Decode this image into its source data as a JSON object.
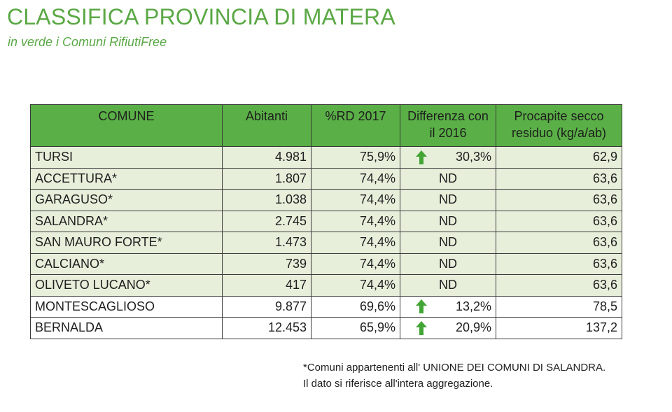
{
  "header": {
    "title": "CLASSIFICA PROVINCIA DI MATERA",
    "subtitle": "in verde i Comuni RifiutiFree"
  },
  "colors": {
    "title_green": "#5aa845",
    "header_green": "#5ab046",
    "rifiutifree_row": "#e7efdb",
    "arrow_green": "#43a535"
  },
  "table": {
    "columns": {
      "comune": "COMUNE",
      "abitanti": "Abitanti",
      "rd": "%RD 2017",
      "diff_line1": "Differenza con",
      "diff_line2": "il 2016",
      "procapite_line1": "Procapite secco",
      "procapite_line2": "residuo (kg/a/ab)"
    },
    "rows": [
      {
        "comune": "TURSI",
        "abitanti": "4.981",
        "rd": "75,9%",
        "diff": "30,3%",
        "arrow": "up-arrow-icon",
        "procapite": "62,9",
        "rifiutifree": true
      },
      {
        "comune": "ACCETTURA*",
        "abitanti": "1.807",
        "rd": "74,4%",
        "diff": "ND",
        "arrow": "",
        "procapite": "63,6",
        "rifiutifree": true
      },
      {
        "comune": "GARAGUSO*",
        "abitanti": "1.038",
        "rd": "74,4%",
        "diff": "ND",
        "arrow": "",
        "procapite": "63,6",
        "rifiutifree": true
      },
      {
        "comune": "SALANDRA*",
        "abitanti": "2.745",
        "rd": "74,4%",
        "diff": "ND",
        "arrow": "",
        "procapite": "63,6",
        "rifiutifree": true
      },
      {
        "comune": "SAN MAURO FORTE*",
        "abitanti": "1.473",
        "rd": "74,4%",
        "diff": "ND",
        "arrow": "",
        "procapite": "63,6",
        "rifiutifree": true
      },
      {
        "comune": "CALCIANO*",
        "abitanti": "739",
        "rd": "74,4%",
        "diff": "ND",
        "arrow": "",
        "procapite": "63,6",
        "rifiutifree": true
      },
      {
        "comune": "OLIVETO LUCANO*",
        "abitanti": "417",
        "rd": "74,4%",
        "diff": "ND",
        "arrow": "",
        "procapite": "63,6",
        "rifiutifree": true
      },
      {
        "comune": "MONTESCAGLIOSO",
        "abitanti": "9.877",
        "rd": "69,6%",
        "diff": "13,2%",
        "arrow": "up-arrow-icon",
        "procapite": "78,5",
        "rifiutifree": false
      },
      {
        "comune": "BERNALDA",
        "abitanti": "12.453",
        "rd": "65,9%",
        "diff": "20,9%",
        "arrow": "up-arrow-icon",
        "procapite": "137,2",
        "rifiutifree": false
      }
    ]
  },
  "footnote": {
    "line1": "*Comuni appartenenti all' UNIONE DEI COMUNI DI SALANDRA.",
    "line2": "Il dato si riferisce all'intera aggregazione."
  }
}
